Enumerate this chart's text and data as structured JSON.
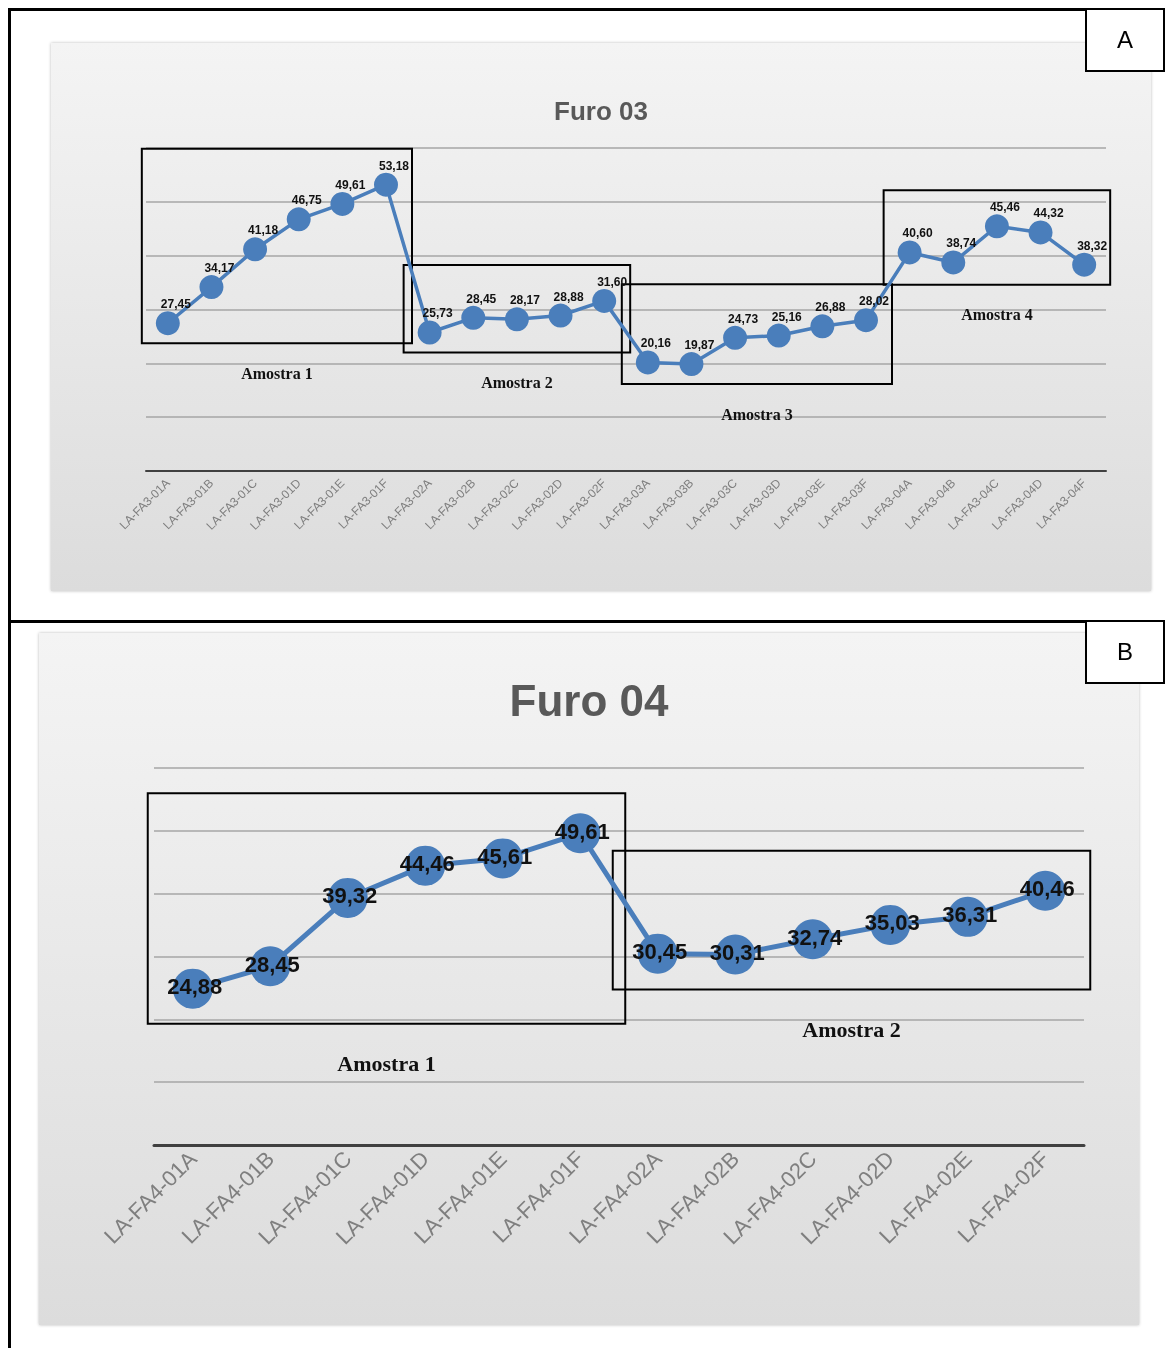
{
  "chart_data": [
    {
      "type": "line",
      "title": "Furo 03",
      "categories": [
        "LA-FA3-01A",
        "LA-FA3-01B",
        "LA-FA3-01C",
        "LA-FA3-01D",
        "LA-FA3-01E",
        "LA-FA3-01F",
        "LA-FA3-02A",
        "LA-FA3-02B",
        "LA-FA3-02C",
        "LA-FA3-02D",
        "LA-FA3-02F",
        "LA-FA3-03A",
        "LA-FA3-03B",
        "LA-FA3-03C",
        "LA-FA3-03D",
        "LA-FA3-03E",
        "LA-FA3-03F",
        "LA-FA3-04A",
        "LA-FA3-04B",
        "LA-FA3-04C",
        "LA-FA3-04D",
        "LA-FA3-04F"
      ],
      "series": [
        {
          "color": "#4a7ebb",
          "values": [
            27.45,
            34.17,
            41.18,
            46.75,
            49.61,
            53.18,
            25.73,
            28.45,
            28.17,
            28.88,
            31.6,
            20.16,
            19.87,
            24.73,
            25.16,
            26.88,
            28.02,
            40.6,
            38.74,
            45.46,
            44.32,
            38.32
          ],
          "value_labels": [
            "27,45",
            "34,17",
            "41,18",
            "46,75",
            "49,61",
            "53,18",
            "25,73",
            "28,45",
            "28,17",
            "28,88",
            "31,60",
            "20,16",
            "19,87",
            "24,73",
            "25,16",
            "26,88",
            "28,02",
            "40,60",
            "38,74",
            "45,46",
            "44,32",
            "38,32"
          ]
        }
      ],
      "ylim": [
        0,
        60
      ],
      "yticks": [
        {
          "value": 0,
          "label": null
        },
        {
          "value": 10,
          "label": null
        },
        {
          "value": 20,
          "label": null
        },
        {
          "value": 30,
          "label": null
        },
        {
          "value": 40,
          "label": null
        },
        {
          "value": 50,
          "label": null
        },
        {
          "value": 60,
          "label": null
        }
      ],
      "annotations": [
        "Amostra 1",
        "Amostra 2",
        "Amostra 3",
        "Amostra 4",
        "A"
      ],
      "grid": "y",
      "marker": "circle"
    },
    {
      "type": "line",
      "title": "Furo 04",
      "categories": [
        "LA-FA4-01A",
        "LA-FA4-01B",
        "LA-FA4-01C",
        "LA-FA4-01D",
        "LA-FA4-01E",
        "LA-FA4-01F",
        "LA-FA4-02A",
        "LA-FA4-02B",
        "LA-FA4-02C",
        "LA-FA4-02D",
        "LA-FA4-02E",
        "LA-FA4-02F"
      ],
      "series": [
        {
          "color": "#4a7ebb",
          "values": [
            24.88,
            28.45,
            39.32,
            44.46,
            45.61,
            49.61,
            30.45,
            30.31,
            32.74,
            35.03,
            36.31,
            40.46
          ],
          "value_labels": [
            "24,88",
            "28,45",
            "39,32",
            "44,46",
            "45,61",
            "49,61",
            "30,45",
            "30,31",
            "32,74",
            "35,03",
            "36,31",
            "40,46"
          ]
        }
      ],
      "ylim": [
        0,
        60
      ],
      "yticks": [
        {
          "value": 0,
          "label": null
        },
        {
          "value": 10,
          "label": null
        },
        {
          "value": 20,
          "label": null
        },
        {
          "value": 30,
          "label": null
        },
        {
          "value": 40,
          "label": null
        },
        {
          "value": 50,
          "label": null
        },
        {
          "value": 60,
          "label": null
        }
      ],
      "annotations": [
        "Amostra 1",
        "Amostra 2",
        "B"
      ],
      "grid": "y",
      "marker": "circle"
    }
  ]
}
